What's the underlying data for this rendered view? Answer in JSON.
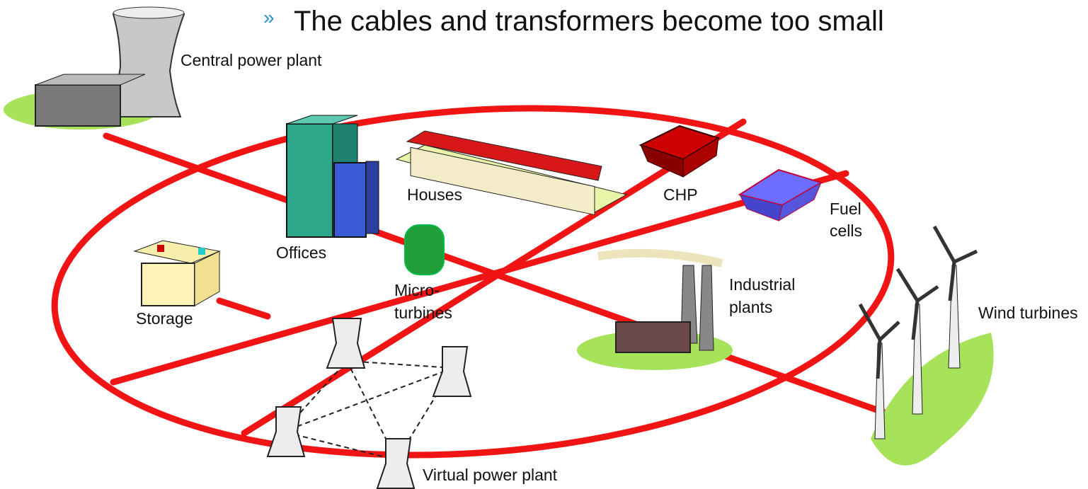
{
  "heading": {
    "bullet": "»",
    "text": "The cables and transformers become too small"
  },
  "nodes": [
    {
      "lines": [
        "Central power plant"
      ]
    },
    {
      "lines": [
        "Offices"
      ]
    },
    {
      "lines": [
        "Houses"
      ]
    },
    {
      "lines": [
        "CHP"
      ]
    },
    {
      "lines": [
        "Fuel",
        "cells"
      ]
    },
    {
      "lines": [
        "Micro-",
        "turbines"
      ]
    },
    {
      "lines": [
        "Storage"
      ]
    },
    {
      "lines": [
        "Industrial",
        "plants"
      ]
    },
    {
      "lines": [
        "Wind turbines"
      ]
    },
    {
      "lines": [
        "Virtual power plant"
      ]
    }
  ]
}
